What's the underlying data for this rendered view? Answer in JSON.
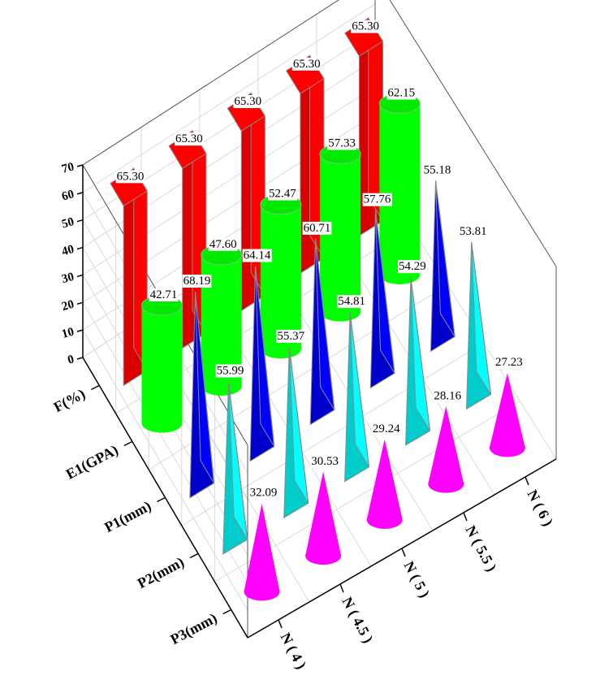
{
  "chart_data": {
    "type": "bar3d",
    "x_axis_label": "",
    "y_axis_label": "",
    "z_range": [
      0,
      70
    ],
    "z_ticks": [
      0,
      10,
      20,
      30,
      40,
      50,
      60,
      70
    ],
    "grid": true,
    "x_categories": [
      "N(4)",
      "N(4.5)",
      "N(5)",
      "N(5.5)",
      "N(6)"
    ],
    "x_category_text": [
      "N ( 4 )",
      "N ( 4.5 )",
      "N ( 5 )",
      "N ( 5.5 )",
      "N ( 6 )"
    ],
    "series": [
      {
        "name": "F(%)",
        "shape": "box",
        "color": "#ff0000",
        "values": [
          65.3,
          65.3,
          65.3,
          65.3,
          65.3
        ],
        "labels": [
          "65.30",
          "65.30",
          "65.30",
          "65.30",
          "65.30"
        ]
      },
      {
        "name": "E1(GPA)",
        "shape": "cylinder",
        "color": "#00ff00",
        "values": [
          42.71,
          47.6,
          52.47,
          57.33,
          62.15
        ],
        "labels": [
          "42.71",
          "47.60",
          "52.47",
          "57.33",
          "62.15"
        ]
      },
      {
        "name": "P1(mm)",
        "shape": "pyramid",
        "color": "#0000ff",
        "values": [
          68.19,
          64.14,
          60.71,
          57.76,
          55.18
        ],
        "labels": [
          "68.19",
          "64.14",
          "60.71",
          "57.76",
          "55.18"
        ]
      },
      {
        "name": "P2(mm)",
        "shape": "pyramid",
        "color": "#00ffff",
        "values": [
          55.99,
          55.37,
          54.81,
          54.29,
          53.81
        ],
        "labels": [
          "55.99",
          "55.37",
          "54.81",
          "54.29",
          "53.81"
        ]
      },
      {
        "name": "P3(mm)",
        "shape": "cone",
        "color": "#ff00ff",
        "values": [
          32.09,
          30.53,
          29.24,
          28.16,
          27.23
        ],
        "labels": [
          "32.09",
          "30.53",
          "29.24",
          "28.16",
          "27.23"
        ]
      }
    ]
  }
}
